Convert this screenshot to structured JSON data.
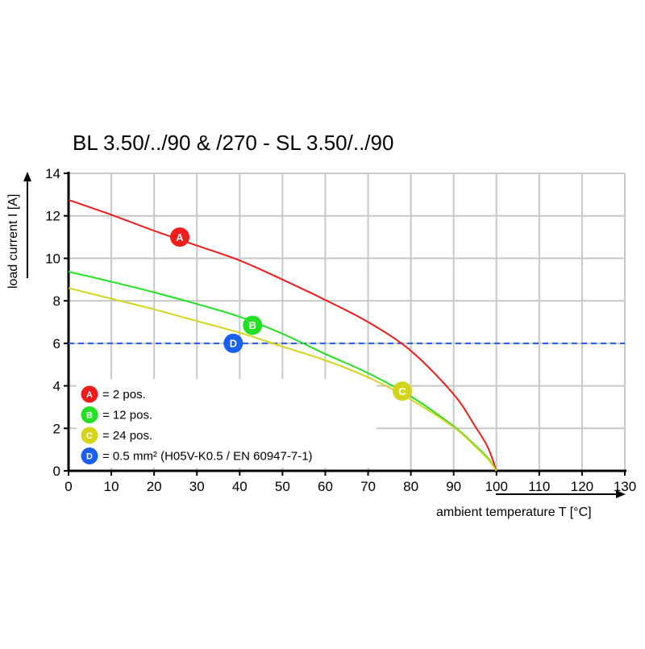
{
  "chart_data": {
    "type": "line",
    "title": "BL 3.50/../90 & /270 - SL 3.50/../90",
    "xlabel": "ambient temperature T [°C]",
    "ylabel": "load current I [A]",
    "xlim": [
      0,
      130
    ],
    "ylim": [
      0,
      14
    ],
    "xticks": [
      "0",
      "10",
      "20",
      "30",
      "40",
      "50",
      "60",
      "70",
      "80",
      "90",
      "100",
      "110",
      "120",
      "130"
    ],
    "yticks": [
      "0",
      "2",
      "4",
      "6",
      "8",
      "10",
      "12",
      "14"
    ],
    "grid": true,
    "legend_position": "bottom-left",
    "series": [
      {
        "marker": "A",
        "color": "#ee1c1c",
        "marker_at": [
          26,
          11.0
        ],
        "x": [
          0,
          10,
          20,
          30,
          40,
          50,
          60,
          70,
          80,
          90,
          95,
          98,
          100
        ],
        "y": [
          12.75,
          12.05,
          11.3,
          10.6,
          9.9,
          9.0,
          8.04,
          7.0,
          5.65,
          3.6,
          2.1,
          1.1,
          0
        ]
      },
      {
        "marker": "B",
        "color": "#22e022",
        "marker_at": [
          43,
          6.85
        ],
        "x": [
          0,
          10,
          20,
          30,
          40,
          50,
          60,
          70,
          80,
          90,
          95,
          98,
          100
        ],
        "y": [
          9.37,
          8.9,
          8.4,
          7.85,
          7.25,
          6.45,
          5.5,
          4.6,
          3.5,
          2.1,
          1.2,
          0.6,
          0
        ]
      },
      {
        "marker": "C",
        "color": "#d4d41a",
        "marker_at": [
          78,
          3.75
        ],
        "x": [
          0,
          10,
          20,
          30,
          40,
          50,
          60,
          70,
          80,
          90,
          95,
          98,
          100
        ],
        "y": [
          8.6,
          8.1,
          7.6,
          7.05,
          6.5,
          5.85,
          5.2,
          4.4,
          3.35,
          2.05,
          1.15,
          0.55,
          0
        ]
      }
    ],
    "reference_line": {
      "marker": "D",
      "color": "#1a5ff0",
      "y": 6,
      "style": "dashed",
      "marker_at": [
        38.5,
        6
      ]
    },
    "legend": [
      {
        "marker": "A",
        "text": "= 2 pos.",
        "color": "#ee1c1c"
      },
      {
        "marker": "B",
        "text": "= 12 pos.",
        "color": "#22e022"
      },
      {
        "marker": "C",
        "text": "= 24 pos.",
        "color": "#d4d41a"
      },
      {
        "marker": "D",
        "text": "= 0.5 mm² (H05V-K0.5 / EN 60947-7-1)",
        "color": "#1a5ff0"
      }
    ]
  }
}
